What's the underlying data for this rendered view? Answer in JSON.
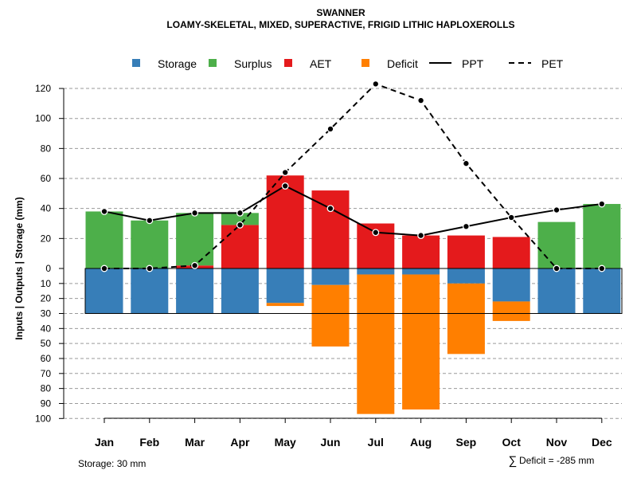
{
  "title": "SWANNER",
  "subtitle": "LOAMY-SKELETAL, MIXED, SUPERACTIVE, FRIGID LITHIC HAPLOXEROLLS",
  "ylabel": "Inputs | Outputs | Storage     (mm)",
  "storage_note": "Storage: 30 mm",
  "deficit_symbol": "∑",
  "deficit_note": "Deficit = -285 mm",
  "legend": [
    {
      "label": "Storage",
      "type": "box",
      "color": "#377EB8"
    },
    {
      "label": "Surplus",
      "type": "box",
      "color": "#4DAF4A"
    },
    {
      "label": "AET",
      "type": "box",
      "color": "#E41A1C"
    },
    {
      "label": "Deficit",
      "type": "box",
      "color": "#FF7F00"
    },
    {
      "label": "PPT",
      "type": "solid",
      "color": "#000000"
    },
    {
      "label": "PET",
      "type": "dashed",
      "color": "#000000"
    }
  ],
  "chart_data": {
    "type": "bar",
    "categories": [
      "Jan",
      "Feb",
      "Mar",
      "Apr",
      "May",
      "Jun",
      "Jul",
      "Aug",
      "Sep",
      "Oct",
      "Nov",
      "Dec"
    ],
    "upper_ticks": [
      0,
      20,
      40,
      60,
      80,
      100,
      120
    ],
    "lower_ticks": [
      10,
      20,
      30,
      40,
      50,
      60,
      70,
      80,
      90,
      100
    ],
    "ylim_upper": [
      0,
      130
    ],
    "ylim_lower": [
      0,
      100
    ],
    "storage_capacity": 30,
    "series": [
      {
        "name": "AET",
        "color": "#E41A1C",
        "values": [
          0,
          0,
          2,
          29,
          62,
          52,
          30,
          22,
          22,
          21,
          0,
          0
        ]
      },
      {
        "name": "Surplus",
        "color": "#4DAF4A",
        "values": [
          38,
          32,
          35,
          8,
          0,
          0,
          0,
          0,
          0,
          0,
          31,
          43
        ]
      },
      {
        "name": "Storage",
        "color": "#377EB8",
        "values": [
          30,
          30,
          30,
          30,
          23,
          11,
          4,
          4,
          10,
          22,
          30,
          30
        ]
      },
      {
        "name": "Deficit",
        "color": "#FF7F00",
        "values": [
          0,
          0,
          0,
          0,
          2,
          41,
          93,
          90,
          47,
          13,
          0,
          0
        ]
      },
      {
        "name": "PPT",
        "color": "#000000",
        "values": [
          38,
          32,
          37,
          37,
          55,
          40,
          24,
          22,
          28,
          34,
          39,
          43
        ]
      },
      {
        "name": "PET",
        "color": "#000000",
        "values": [
          0,
          0,
          2,
          29,
          64,
          93,
          123,
          112,
          70,
          34,
          0,
          0
        ]
      }
    ]
  }
}
